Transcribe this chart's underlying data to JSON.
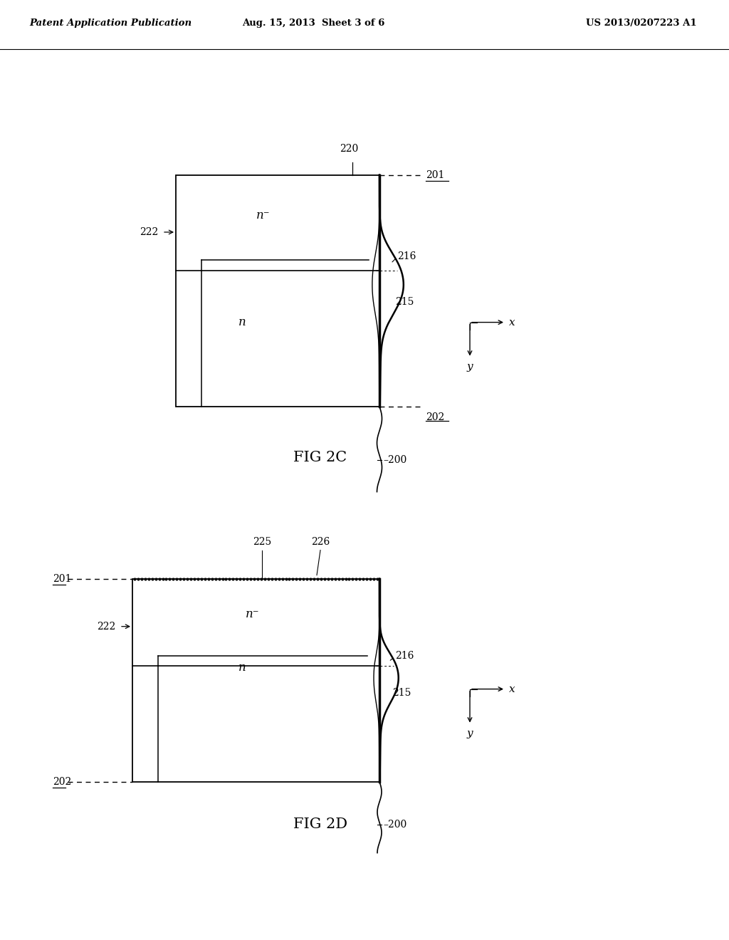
{
  "header_left": "Patent Application Publication",
  "header_center": "Aug. 15, 2013  Sheet 3 of 6",
  "header_right": "US 2013/0207223 A1",
  "fig2c_label": "FIG 2C",
  "fig2d_label": "FIG 2D",
  "background_color": "#ffffff",
  "line_color": "#000000"
}
